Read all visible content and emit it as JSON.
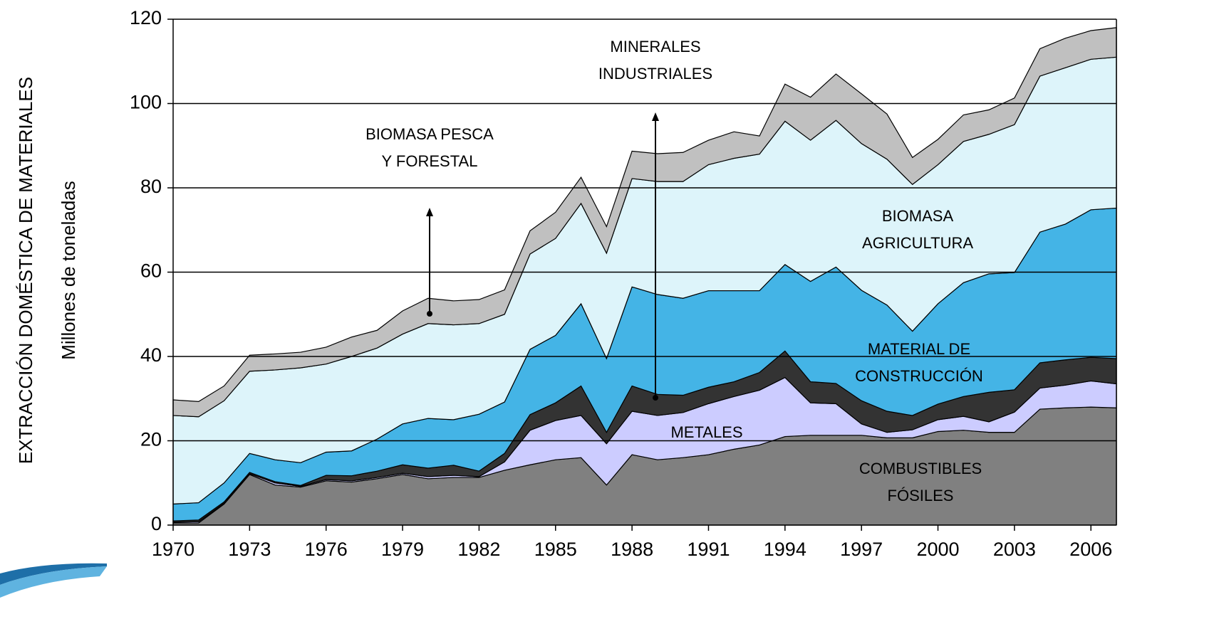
{
  "chart_data": {
    "type": "stacked-area",
    "y_axis_label": "EXTRACCIÓN DOMÉSTICA DE MATERIALES",
    "y_axis_sublabel": "Millones de toneladas",
    "x": [
      1970,
      1971,
      1972,
      1973,
      1974,
      1975,
      1976,
      1977,
      1978,
      1979,
      1980,
      1981,
      1982,
      1983,
      1984,
      1985,
      1986,
      1987,
      1988,
      1989,
      1990,
      1991,
      1992,
      1993,
      1994,
      1995,
      1996,
      1997,
      1998,
      1999,
      2000,
      2001,
      2002,
      2003,
      2004,
      2005,
      2006,
      2007
    ],
    "xlim": [
      1970,
      2007
    ],
    "xticks": [
      1970,
      1973,
      1976,
      1979,
      1982,
      1985,
      1988,
      1991,
      1994,
      1997,
      2000,
      2003,
      2006
    ],
    "ylim": [
      0,
      120
    ],
    "yticks": [
      0,
      20,
      40,
      60,
      80,
      100,
      120
    ],
    "grid": true,
    "series": [
      {
        "label_lines": [
          "COMBUSTIBLES",
          "FÓSILES"
        ],
        "color": "#808080",
        "values": [
          0.5,
          0.5,
          5,
          12,
          9.5,
          9,
          10.5,
          10.2,
          11,
          12,
          11,
          11.3,
          11.3,
          13,
          14.3,
          15.5,
          16,
          9.5,
          16.7,
          15.5,
          16,
          16.7,
          18,
          19,
          21,
          21.3,
          21.3,
          21.3,
          20.7,
          20.7,
          22.2,
          22.5,
          22,
          22,
          27.5,
          27.8,
          28,
          27.8
        ]
      },
      {
        "label_lines": [
          "METALES"
        ],
        "color": "#ccccff",
        "values": [
          0.2,
          0.3,
          0.2,
          0.2,
          0.5,
          0.2,
          0.3,
          0.3,
          0.3,
          0.3,
          0.5,
          0.5,
          0.2,
          2,
          8.2,
          9.3,
          10,
          9.8,
          10.3,
          10.5,
          10.7,
          12.1,
          12.5,
          13,
          14,
          7.7,
          7.5,
          2.7,
          1.3,
          1.9,
          2.8,
          3.3,
          2.5,
          4.8,
          5,
          5.4,
          6.2,
          5.7
        ]
      },
      {
        "label_lines": [
          "MINERALES",
          "INDUSTRIALES"
        ],
        "color": "#333333",
        "values": [
          0.3,
          0.4,
          0.3,
          0.3,
          0.3,
          0.2,
          1,
          1.2,
          1.5,
          2,
          2,
          2.4,
          1.3,
          2,
          3.7,
          4.2,
          7,
          2.7,
          6,
          5,
          4.1,
          3.9,
          3.5,
          4.2,
          6.3,
          5,
          4.8,
          5.5,
          5,
          3.4,
          3.7,
          4.7,
          7,
          5.3,
          6,
          6,
          5.6,
          6
        ]
      },
      {
        "label_lines": [
          "MATERIAL DE",
          "CONSTRUCCIÓN"
        ],
        "color": "#44b4e6",
        "values": [
          4,
          4.1,
          4.5,
          4.5,
          5.2,
          5.4,
          5.5,
          5.9,
          7.6,
          9.7,
          11.8,
          10.8,
          13.5,
          12.2,
          15.5,
          16,
          19.5,
          17.5,
          23.5,
          23.7,
          23,
          22.9,
          21.6,
          19.4,
          20.5,
          23.8,
          27.6,
          26.2,
          25.2,
          20,
          23.8,
          27,
          28.1,
          27.8,
          31,
          32.2,
          35,
          35.7
        ]
      },
      {
        "label_lines": [
          "BIOMASA",
          "AGRICULTURA"
        ],
        "color": "#ddf4fa",
        "values": [
          21,
          20.4,
          19.5,
          19.5,
          21.3,
          22.5,
          20.9,
          22.4,
          21.6,
          21.3,
          22.5,
          22.5,
          21.5,
          20.8,
          22.6,
          23,
          23.8,
          25,
          25.7,
          26.8,
          27.7,
          29.9,
          31.4,
          32.4,
          34,
          33.5,
          34.8,
          34.8,
          34.6,
          34.8,
          33,
          33.5,
          33.1,
          35.1,
          37,
          37.1,
          35.7,
          35.8
        ]
      },
      {
        "label_lines": [
          "BIOMASA PESCA",
          "Y FORESTAL"
        ],
        "color": "#c0c0c0",
        "values": [
          3.7,
          3.6,
          3.5,
          3.8,
          3.8,
          3.7,
          4,
          4.6,
          4.2,
          5.5,
          6,
          5.7,
          5.7,
          5.8,
          5.5,
          6.2,
          6.2,
          6.3,
          6.5,
          6.6,
          6.9,
          5.8,
          6.3,
          4.3,
          8.8,
          10.2,
          11,
          11.8,
          10.7,
          6.4,
          6,
          6.3,
          5.8,
          6.3,
          6.5,
          7,
          6.8,
          7
        ]
      }
    ]
  }
}
